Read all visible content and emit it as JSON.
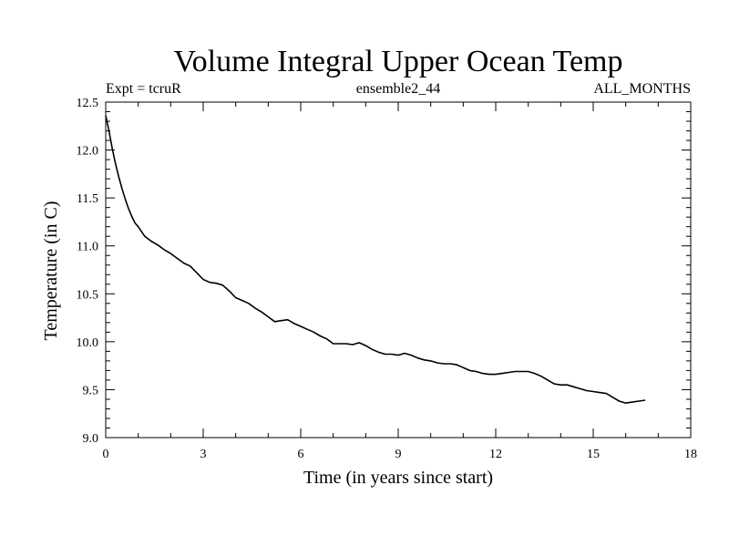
{
  "chart_data": {
    "type": "line",
    "title": "Volume Integral Upper Ocean Temp",
    "subtitle_left": "Expt = tcruR",
    "subtitle_center": "ensemble2_44",
    "subtitle_right": "ALL_MONTHS",
    "xlabel": "Time (in years since start)",
    "ylabel": "Temperature (in C)",
    "xlim": [
      0,
      18
    ],
    "ylim": [
      9.0,
      12.5
    ],
    "x_ticks": [
      0,
      3,
      6,
      9,
      12,
      15,
      18
    ],
    "x_tick_labels": [
      "0",
      "3",
      "6",
      "9",
      "12",
      "15",
      "18"
    ],
    "y_ticks": [
      9.0,
      9.5,
      10.0,
      10.5,
      11.0,
      11.5,
      12.0,
      12.5
    ],
    "y_tick_labels": [
      "9.0",
      "9.5",
      "10.0",
      "10.5",
      "11.0",
      "11.5",
      "12.0",
      "12.5"
    ],
    "grid": false,
    "line_color": "#000000",
    "series": [
      {
        "x": [
          0,
          0.1,
          0.2,
          0.3,
          0.4,
          0.5,
          0.6,
          0.7,
          0.8,
          0.9,
          1.0,
          1.2,
          1.4,
          1.6,
          1.8,
          2.0,
          2.2,
          2.4,
          2.6,
          2.8,
          3.0,
          3.2,
          3.4,
          3.6,
          3.8,
          4.0,
          4.2,
          4.4,
          4.6,
          4.8,
          5.0,
          5.2,
          5.4,
          5.6,
          5.8,
          6.0,
          6.2,
          6.4,
          6.6,
          6.8,
          7.0,
          7.2,
          7.4,
          7.6,
          7.8,
          8.0,
          8.2,
          8.4,
          8.6,
          8.8,
          9.0,
          9.2,
          9.4,
          9.6,
          9.8,
          10.0,
          10.2,
          10.4,
          10.6,
          10.8,
          11.0,
          11.2,
          11.4,
          11.6,
          11.8,
          12.0,
          12.2,
          12.4,
          12.6,
          12.8,
          13.0,
          13.2,
          13.4,
          13.6,
          13.8,
          14.0,
          14.2,
          14.4,
          14.6,
          14.8,
          15.0,
          15.2,
          15.4,
          15.6,
          15.8,
          16.0,
          16.2,
          16.4,
          16.6
        ],
        "y": [
          12.36,
          12.2,
          12.02,
          11.86,
          11.72,
          11.6,
          11.49,
          11.39,
          11.31,
          11.24,
          11.2,
          11.1,
          11.05,
          11.01,
          10.96,
          10.92,
          10.87,
          10.82,
          10.79,
          10.72,
          10.65,
          10.62,
          10.61,
          10.59,
          10.53,
          10.46,
          10.43,
          10.4,
          10.35,
          10.31,
          10.26,
          10.21,
          10.22,
          10.23,
          10.19,
          10.16,
          10.13,
          10.1,
          10.06,
          10.03,
          9.98,
          9.98,
          9.98,
          9.97,
          9.99,
          9.96,
          9.92,
          9.89,
          9.87,
          9.87,
          9.86,
          9.88,
          9.86,
          9.83,
          9.81,
          9.8,
          9.78,
          9.77,
          9.77,
          9.76,
          9.73,
          9.7,
          9.69,
          9.67,
          9.66,
          9.66,
          9.67,
          9.68,
          9.69,
          9.69,
          9.69,
          9.67,
          9.64,
          9.6,
          9.56,
          9.55,
          9.55,
          9.53,
          9.51,
          9.49,
          9.48,
          9.47,
          9.46,
          9.42,
          9.38,
          9.36,
          9.37,
          9.38,
          9.39
        ]
      }
    ]
  }
}
